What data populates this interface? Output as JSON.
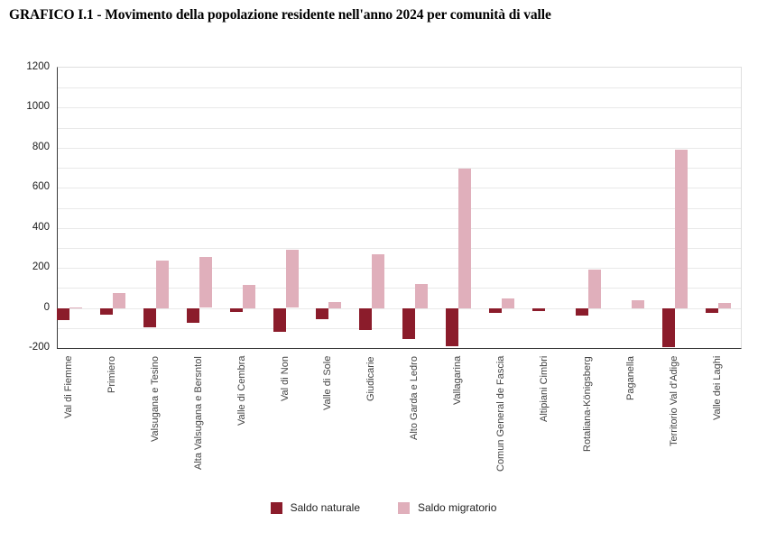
{
  "title": "GRAFICO I.1 - Movimento della popolazione residente nell'anno 2024 per comunità di valle",
  "chart_data": {
    "type": "bar",
    "title": "GRAFICO I.1 - Movimento della popolazione residente nell'anno 2024 per comunità di valle",
    "categories": [
      "Val di Fiemme",
      "Primiero",
      "Valsugana e Tesino",
      "Alta Valsugana e Bersntol",
      "Valle di Cembra",
      "Val di Non",
      "Valle di Sole",
      "Giudicarie",
      "Alto Garda e Ledro",
      "Vallagarina",
      "Comun General de Fascia",
      "Altipiani Cimbri",
      "Rotaliana-Königsberg",
      "Paganella",
      "Territorio Val d'Adige",
      "Valle dei Laghi"
    ],
    "series": [
      {
        "name": "Saldo naturale",
        "color": "#8B1C2B",
        "values": [
          -60,
          -35,
          -95,
          -75,
          -20,
          -120,
          -55,
          -110,
          -155,
          -190,
          -25,
          -15,
          -40,
          0,
          -195,
          -25
        ]
      },
      {
        "name": "Saldo migratorio",
        "color": "#E0AFBB",
        "values": [
          5,
          75,
          235,
          255,
          115,
          290,
          30,
          270,
          120,
          695,
          50,
          0,
          190,
          40,
          790,
          25
        ]
      }
    ],
    "xlabel": "",
    "ylabel": "",
    "ylim": [
      -200,
      1200
    ],
    "yticks": [
      -200,
      0,
      200,
      400,
      600,
      800,
      1000,
      1200
    ],
    "grid_step": 100,
    "grid": true,
    "legend_position": "bottom",
    "colors": {
      "axis": "#3a3a3a",
      "gridline": "#e9e9e9",
      "plot_border": "#dedede",
      "tick_text": "#1a1a1a",
      "category_text": "#444444"
    }
  }
}
